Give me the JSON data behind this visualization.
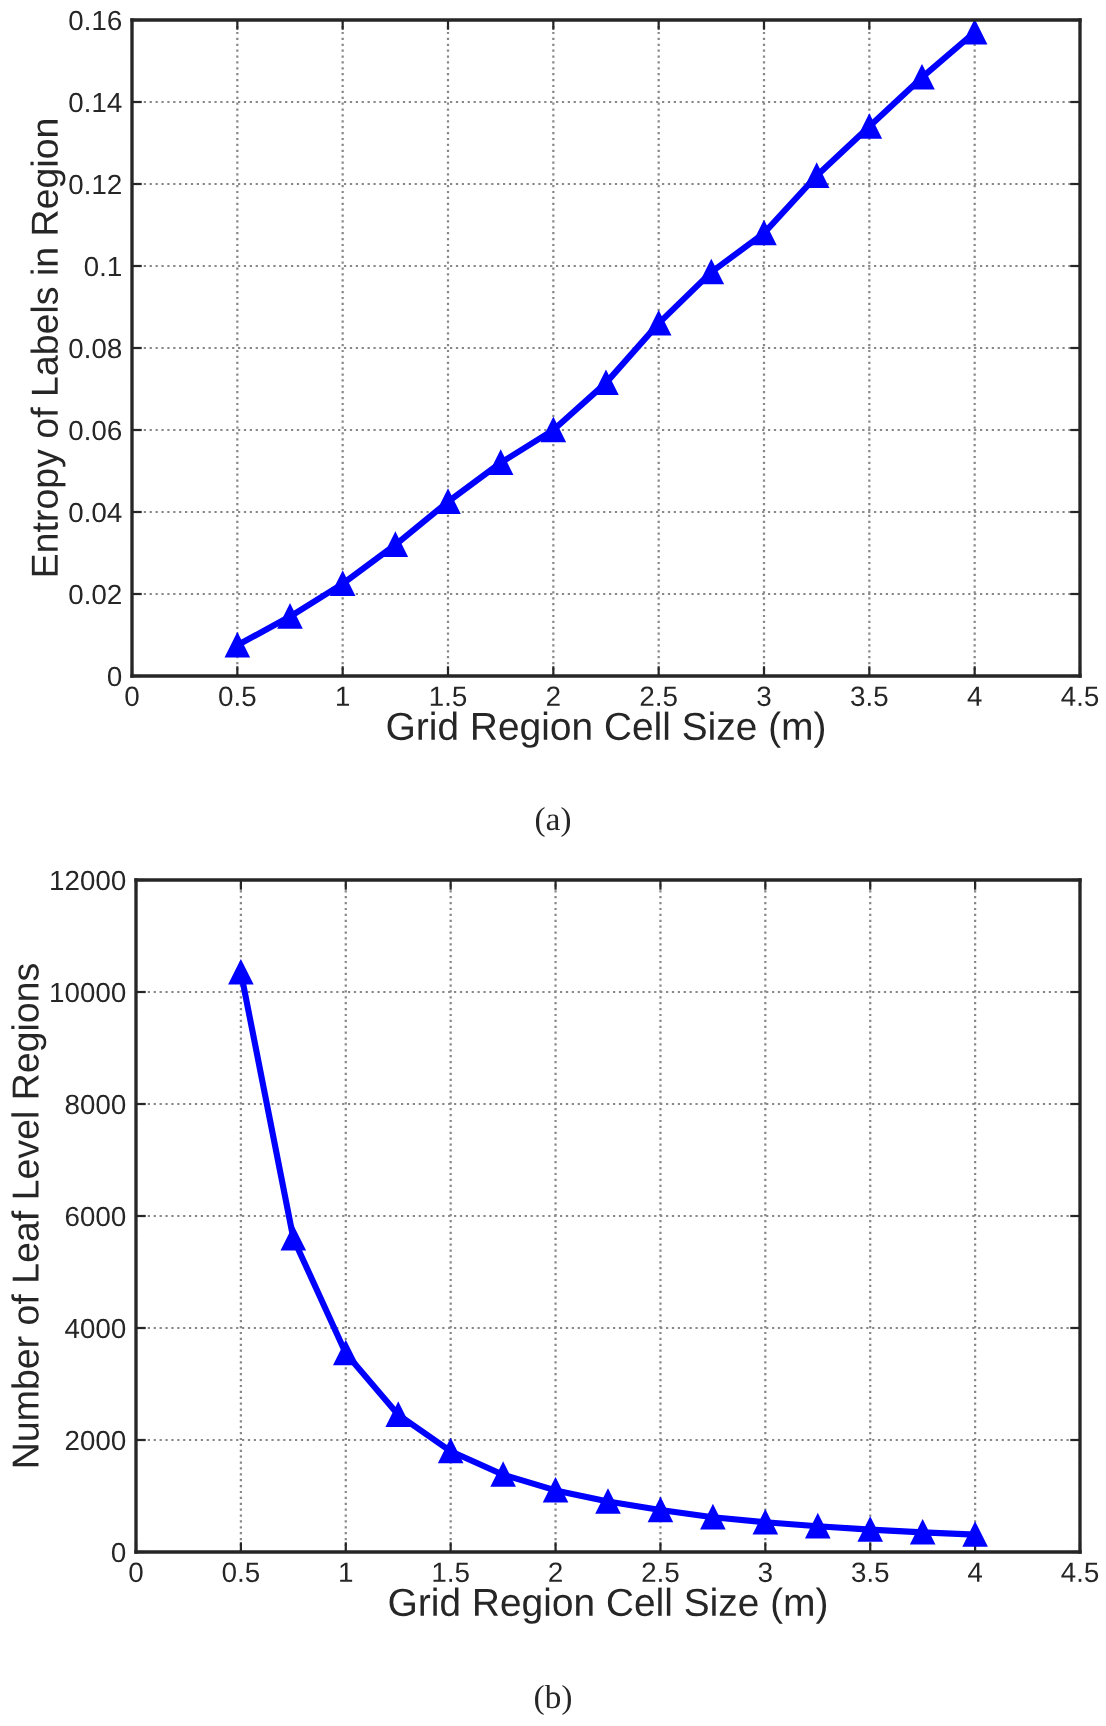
{
  "chart_data": [
    {
      "type": "line",
      "xlabel": "Grid Region Cell Size (m)",
      "ylabel": "Entropy of Labels in Region",
      "annotations": [
        "(a)"
      ],
      "x": [
        0.5,
        0.75,
        1,
        1.25,
        1.5,
        1.75,
        2,
        2.25,
        2.5,
        2.75,
        3,
        3.25,
        3.5,
        3.75,
        4
      ],
      "series": [
        {
          "color": "#0000ff",
          "values": [
            0.0075,
            0.0145,
            0.0225,
            0.032,
            0.0425,
            0.052,
            0.06,
            0.0715,
            0.086,
            0.0985,
            0.108,
            0.122,
            0.134,
            0.146,
            0.157
          ]
        }
      ],
      "xlim": [
        0,
        4.5
      ],
      "xticks": [
        0,
        0.5,
        1,
        1.5,
        2,
        2.5,
        3,
        3.5,
        4,
        4.5
      ],
      "ylim": [
        0,
        0.16
      ],
      "yticks": [
        0,
        0.02,
        0.04,
        0.06,
        0.08,
        0.1,
        0.12,
        0.14,
        0.16
      ],
      "grid": true,
      "marker": "triangle",
      "line_style": "solid"
    },
    {
      "type": "line",
      "xlabel": "Grid Region Cell Size (m)",
      "ylabel": "Number of Leaf Level Regions",
      "annotations": [
        "(b)"
      ],
      "x": [
        0.5,
        0.75,
        1,
        1.25,
        1.5,
        1.75,
        2,
        2.25,
        2.5,
        2.75,
        3,
        3.25,
        3.5,
        3.75,
        4
      ],
      "series": [
        {
          "color": "#0000ff",
          "values": [
            10350,
            5600,
            3550,
            2450,
            1800,
            1380,
            1100,
            900,
            750,
            620,
            530,
            460,
            400,
            350,
            310
          ]
        }
      ],
      "xlim": [
        0,
        4.5
      ],
      "xticks": [
        0,
        0.5,
        1,
        1.5,
        2,
        2.5,
        3,
        3.5,
        4,
        4.5
      ],
      "ylim": [
        0,
        12000
      ],
      "yticks": [
        0,
        2000,
        4000,
        6000,
        8000,
        10000,
        12000
      ],
      "grid": true,
      "marker": "triangle",
      "line_style": "solid"
    }
  ]
}
